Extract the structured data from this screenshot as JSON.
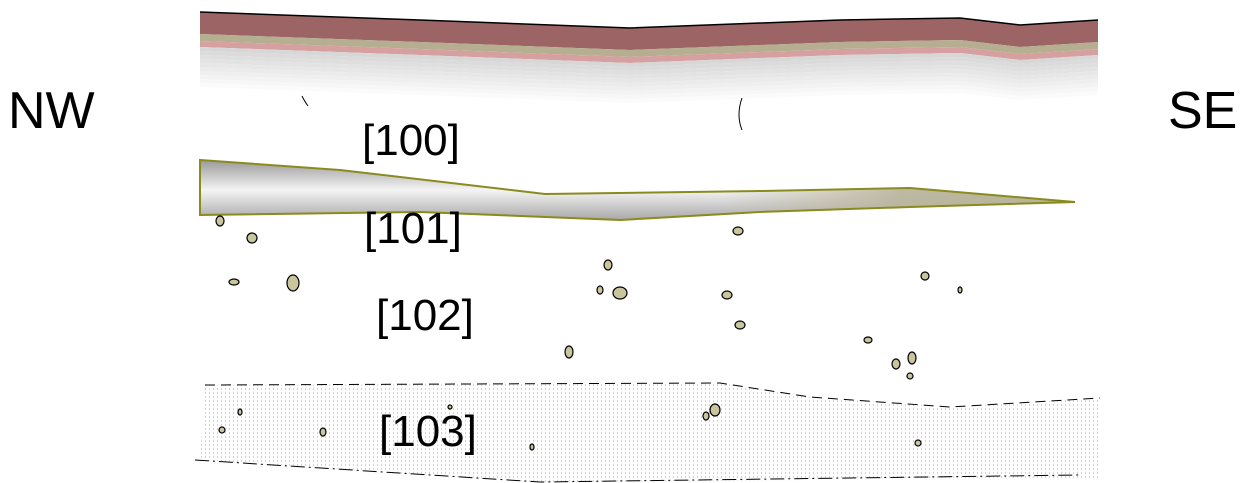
{
  "orientation": {
    "left": "NW",
    "right": "SE"
  },
  "contexts": [
    {
      "label": "[100]"
    },
    {
      "label": "[101]"
    },
    {
      "label": "[102]"
    },
    {
      "label": "[103]"
    }
  ]
}
